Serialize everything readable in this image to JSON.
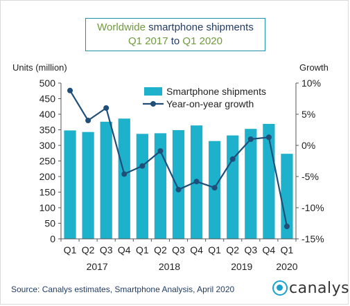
{
  "chart_data": {
    "type": "bar",
    "title_part1": "Worldwide",
    "title_part2": " smartphone shipments",
    "subtitle_part1": "Q1 2017",
    "subtitle_part2": " to ",
    "subtitle_part3": "Q1 2020",
    "left_axis_title": "Units (million)",
    "right_axis_title": "Growth",
    "quarters": [
      "Q1",
      "Q2",
      "Q3",
      "Q4",
      "Q1",
      "Q2",
      "Q3",
      "Q4",
      "Q1",
      "Q2",
      "Q3",
      "Q4",
      "Q1"
    ],
    "years": [
      {
        "label": "2017",
        "first": 0,
        "last": 3
      },
      {
        "label": "2018",
        "first": 4,
        "last": 7
      },
      {
        "label": "2019",
        "first": 8,
        "last": 11
      },
      {
        "label": "2020",
        "first": 12,
        "last": 12
      }
    ],
    "series": [
      {
        "name": "Smartphone shipments",
        "type": "bar",
        "axis": "left",
        "color": "#1db1cb",
        "values": [
          348,
          343,
          376,
          386,
          337,
          339,
          349,
          364,
          314,
          332,
          353,
          369,
          273
        ]
      },
      {
        "name": "Year-on-year growth",
        "type": "line",
        "axis": "right",
        "color": "#1f4e79",
        "values": [
          8.8,
          4.0,
          6.0,
          -4.6,
          -3.3,
          -0.9,
          -7.1,
          -5.8,
          -6.8,
          -2.2,
          1.0,
          1.3,
          -13.0
        ]
      }
    ],
    "left_axis": {
      "min": 0,
      "max": 500,
      "ticks": [
        "0",
        "50",
        "100",
        "150",
        "200",
        "250",
        "300",
        "350",
        "400",
        "450",
        "500"
      ]
    },
    "right_axis": {
      "min": -15,
      "max": 10,
      "ticks": [
        "-15%",
        "-10%",
        "-5%",
        "0%",
        "5%",
        "10%"
      ]
    },
    "legend_position": "top-center",
    "grid": false
  },
  "footer": {
    "source": "Source: Canalys estimates, Smartphone Analysis, April 2020",
    "logo_text": "canalys"
  }
}
